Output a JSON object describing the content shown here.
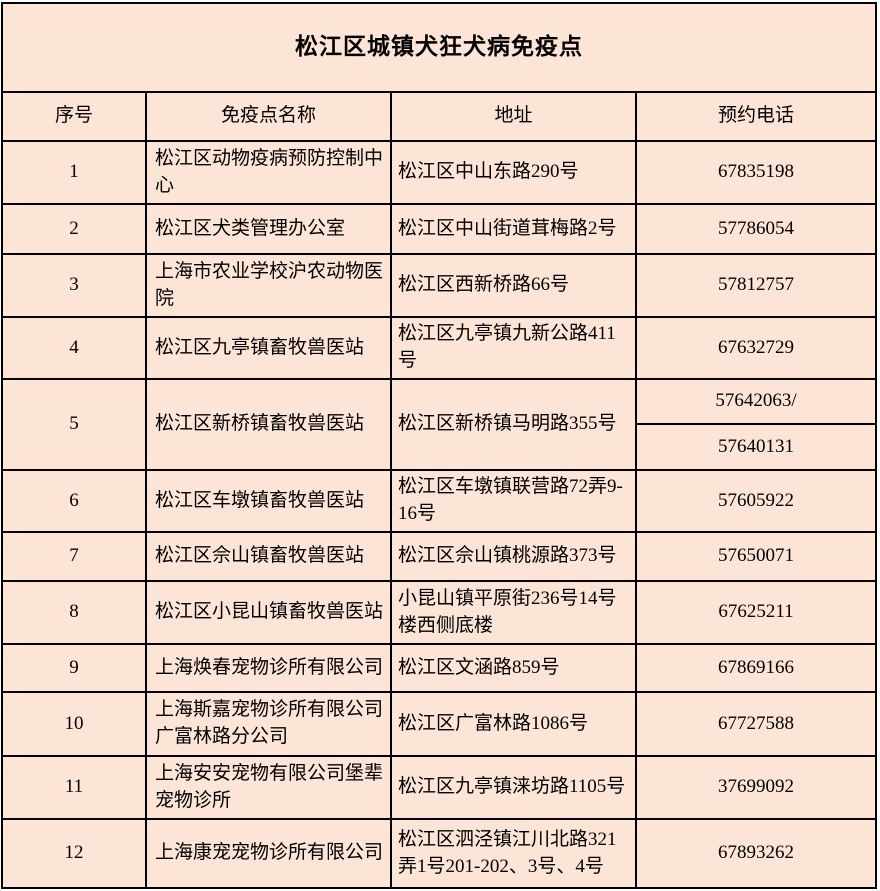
{
  "table": {
    "title": "松江区城镇犬狂犬病免疫点",
    "columns": [
      "序号",
      "免疫点名称",
      "地址",
      "预约电话"
    ],
    "rows": [
      {
        "no": "1",
        "name": "松江区动物疫病预防控制中心",
        "address": "松江区中山东路290号",
        "phones": [
          "67835198"
        ]
      },
      {
        "no": "2",
        "name": "松江区犬类管理办公室",
        "address": "松江区中山街道茸梅路2号",
        "phones": [
          "57786054"
        ]
      },
      {
        "no": "3",
        "name": "上海市农业学校沪农动物医院",
        "address": "松江区西新桥路66号",
        "phones": [
          "57812757"
        ]
      },
      {
        "no": "4",
        "name": "松江区九亭镇畜牧兽医站",
        "address": "松江区九亭镇九新公路411号",
        "phones": [
          "67632729"
        ]
      },
      {
        "no": "5",
        "name": "松江区新桥镇畜牧兽医站",
        "address": "松江区新桥镇马明路355号",
        "phones": [
          "57642063/",
          "57640131"
        ]
      },
      {
        "no": "6",
        "name": "松江区车墩镇畜牧兽医站",
        "address": "松江区车墩镇联营路72弄9-16号",
        "phones": [
          "57605922"
        ]
      },
      {
        "no": "7",
        "name": "松江区佘山镇畜牧兽医站",
        "address": "松江区佘山镇桃源路373号",
        "phones": [
          "57650071"
        ]
      },
      {
        "no": "8",
        "name": "松江区小昆山镇畜牧兽医站",
        "address": "小昆山镇平原街236号14号楼西侧底楼",
        "phones": [
          "67625211"
        ]
      },
      {
        "no": "9",
        "name": "上海焕春宠物诊所有限公司",
        "address": "松江区文涵路859号",
        "phones": [
          "67869166"
        ]
      },
      {
        "no": "10",
        "name": "上海斯嘉宠物诊所有限公司广富林路分公司",
        "address": "松江区广富林路1086号",
        "phones": [
          "67727588"
        ]
      },
      {
        "no": "11",
        "name": "上海安安宠物有限公司堡辈宠物诊所",
        "address": "松江区九亭镇涞坊路1105号",
        "phones": [
          "37699092"
        ]
      },
      {
        "no": "12",
        "name": "上海康宠宠物诊所有限公司",
        "address": "松江区泗泾镇江川北路321弄1号201-202、3号、4号",
        "phones": [
          "67893262"
        ]
      }
    ],
    "colors": {
      "background": "#fce4d6",
      "border": "#000000",
      "text": "#000000"
    }
  }
}
